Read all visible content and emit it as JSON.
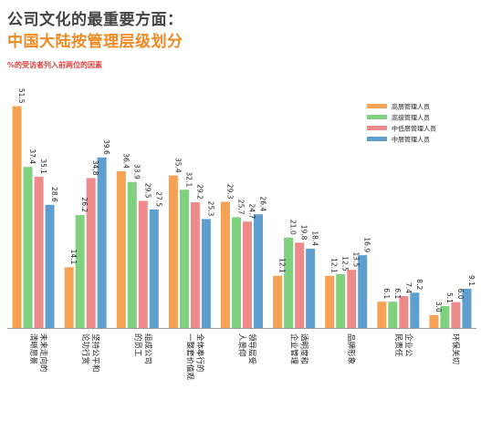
{
  "header": {
    "title_line1": "公司文化的最重要方面：",
    "title_line2": "中国大陆按管理层级划分",
    "subtitle": "%的受访者列入前两位的因素"
  },
  "colors": {
    "series": [
      "#f6a255",
      "#7fd07f",
      "#ef8a8a",
      "#5f9fcf"
    ],
    "axis": "#999999"
  },
  "chart_data": {
    "type": "bar",
    "title": "中国大陆按管理层级划分",
    "ylabel": "%的受访者列入前两位的因素",
    "ylim": [
      0,
      55
    ],
    "grid": false,
    "legend_position": "top-right",
    "categories": [
      [
        "未来走向的",
        "清晰愿景"
      ],
      [
        "坚持公平和",
        "论功行赏"
      ],
      [
        "组成公司",
        "的员工"
      ],
      [
        "全体奉行的",
        "一整套价值观"
      ],
      [
        "领导层受",
        "人景仰"
      ],
      [
        "透明度和",
        "企业管理"
      ],
      [
        "品牌形象"
      ],
      [
        "企业公",
        "民责任"
      ],
      [
        "环保关切"
      ]
    ],
    "series": [
      {
        "name": "高层管理人员",
        "values": [
          51.5,
          14.1,
          36.4,
          35.4,
          29.3,
          12.1,
          12.1,
          6.1,
          3.0
        ]
      },
      {
        "name": "高级管理人员",
        "values": [
          37.4,
          26.2,
          33.9,
          32.1,
          25.7,
          21.0,
          12.5,
          6.1,
          5.1
        ]
      },
      {
        "name": "中低层管理人员",
        "values": [
          35.1,
          34.8,
          29.5,
          29.2,
          24.7,
          19.8,
          13.5,
          7.4,
          6.0
        ]
      },
      {
        "name": "中层管理人员",
        "values": [
          28.6,
          39.6,
          27.5,
          25.3,
          26.4,
          18.4,
          16.9,
          8.2,
          9.1
        ]
      }
    ]
  }
}
